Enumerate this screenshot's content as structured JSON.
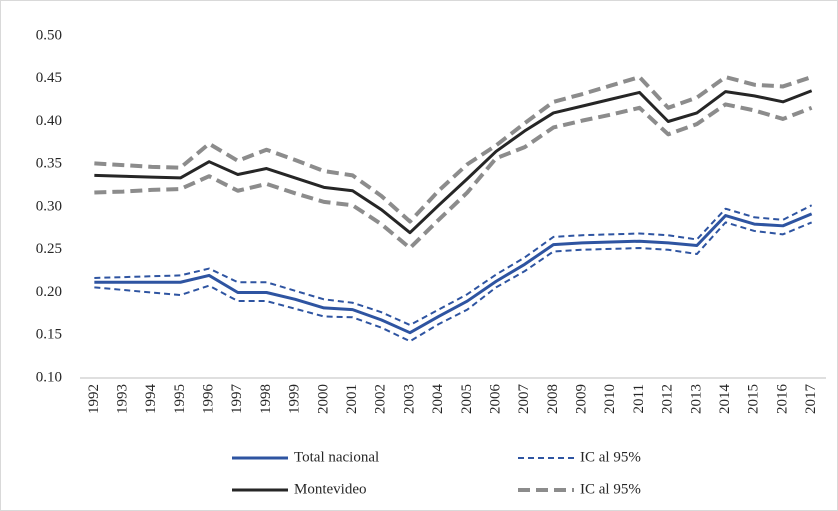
{
  "chart_data": {
    "type": "line",
    "categories": [
      "1992",
      "1993",
      "1994",
      "1995",
      "1996",
      "1997",
      "1998",
      "1999",
      "2000",
      "2001",
      "2002",
      "2003",
      "2004",
      "2005",
      "2006",
      "2007",
      "2008",
      "2009",
      "2010",
      "2011",
      "2012",
      "2013",
      "2014",
      "2015",
      "2016",
      "2017"
    ],
    "series": [
      {
        "name": "Total nacional",
        "color": "#2e54a1",
        "dashed": false,
        "values": [
          0.212,
          0.212,
          0.212,
          0.212,
          0.22,
          0.2,
          0.2,
          0.192,
          0.182,
          0.18,
          0.168,
          0.153,
          0.172,
          0.19,
          0.213,
          0.233,
          0.256,
          0.258,
          0.259,
          0.26,
          0.258,
          0.255,
          0.29,
          0.28,
          0.278,
          0.292
        ]
      },
      {
        "name": "IC al 95%",
        "color": "#2e54a1",
        "dashed": true,
        "upper": [
          0.217,
          0.218,
          0.219,
          0.22,
          0.228,
          0.212,
          0.212,
          0.202,
          0.192,
          0.188,
          0.177,
          0.162,
          0.18,
          0.198,
          0.221,
          0.241,
          0.265,
          0.267,
          0.268,
          0.269,
          0.267,
          0.262,
          0.298,
          0.288,
          0.285,
          0.302
        ],
        "lower": [
          0.206,
          0.203,
          0.2,
          0.197,
          0.208,
          0.19,
          0.19,
          0.181,
          0.172,
          0.171,
          0.159,
          0.143,
          0.163,
          0.18,
          0.206,
          0.225,
          0.248,
          0.25,
          0.251,
          0.252,
          0.25,
          0.245,
          0.282,
          0.272,
          0.268,
          0.282
        ]
      },
      {
        "name": "Montevideo",
        "color": "#262626",
        "dashed": false,
        "values": [
          0.337,
          0.336,
          0.335,
          0.334,
          0.353,
          0.338,
          0.345,
          0.334,
          0.323,
          0.319,
          0.297,
          0.27,
          0.302,
          0.333,
          0.365,
          0.389,
          0.41,
          0.418,
          0.426,
          0.434,
          0.4,
          0.41,
          0.435,
          0.43,
          0.423,
          0.436
        ]
      },
      {
        "name": "IC al 95%",
        "color": "#8c8c8c",
        "dashed": true,
        "upper": [
          0.351,
          0.349,
          0.347,
          0.346,
          0.374,
          0.354,
          0.367,
          0.355,
          0.342,
          0.337,
          0.313,
          0.283,
          0.319,
          0.35,
          0.372,
          0.398,
          0.423,
          0.432,
          0.442,
          0.452,
          0.416,
          0.428,
          0.452,
          0.443,
          0.441,
          0.452
        ],
        "lower": [
          0.317,
          0.318,
          0.32,
          0.321,
          0.336,
          0.319,
          0.327,
          0.316,
          0.306,
          0.302,
          0.28,
          0.252,
          0.285,
          0.317,
          0.357,
          0.37,
          0.393,
          0.401,
          0.408,
          0.416,
          0.385,
          0.397,
          0.42,
          0.413,
          0.403,
          0.416
        ]
      }
    ],
    "ylim": [
      0.1,
      0.5
    ],
    "yticks": [
      {
        "value": 0.1,
        "label": "0.10"
      },
      {
        "value": 0.15,
        "label": "0.15"
      },
      {
        "value": 0.2,
        "label": "0.20"
      },
      {
        "value": 0.25,
        "label": "0.25"
      },
      {
        "value": 0.3,
        "label": "0.30"
      },
      {
        "value": 0.35,
        "label": "0.35"
      },
      {
        "value": 0.4,
        "label": "0.40"
      },
      {
        "value": 0.45,
        "label": "0.45"
      },
      {
        "value": 0.5,
        "label": "0.50"
      }
    ],
    "grid": false
  }
}
